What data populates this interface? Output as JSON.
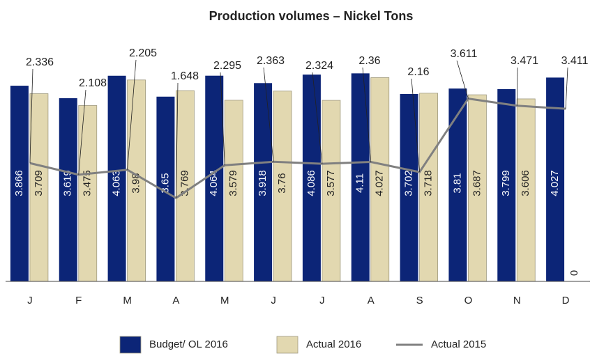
{
  "chart_data": {
    "type": "bar",
    "title": "Production volumes – Nickel Tons",
    "categories": [
      "J",
      "F",
      "M",
      "A",
      "M",
      "J",
      "J",
      "A",
      "S",
      "O",
      "N",
      "D"
    ],
    "series": [
      {
        "name": "Budget/ OL 2016",
        "type": "bar",
        "color": "#0c2577",
        "values": [
          3.866,
          3.619,
          4.063,
          3.65,
          4.064,
          3.918,
          4.086,
          4.11,
          3.702,
          3.81,
          3.799,
          4.027
        ]
      },
      {
        "name": "Actual 2016",
        "type": "bar",
        "color": "#e2d8b0",
        "values": [
          3.709,
          3.475,
          3.98,
          3.769,
          3.579,
          3.76,
          3.577,
          4.027,
          3.718,
          3.687,
          3.606,
          0
        ]
      },
      {
        "name": "Actual 2015",
        "type": "line",
        "color": "#808080",
        "values": [
          2.336,
          2.108,
          2.205,
          1.648,
          2.295,
          2.363,
          2.324,
          2.36,
          2.16,
          3.611,
          3.471,
          3.411
        ]
      }
    ],
    "ylim": [
      0,
      4.5
    ]
  }
}
